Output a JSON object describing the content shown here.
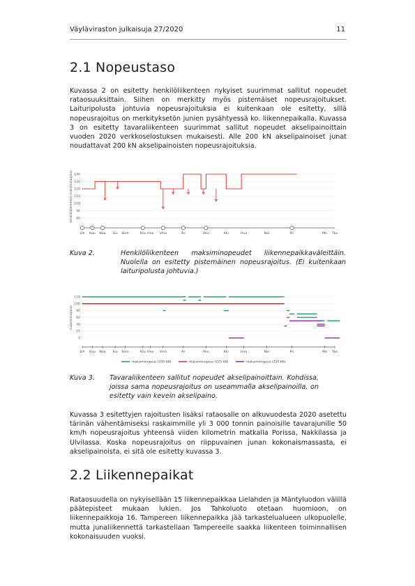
{
  "header": {
    "publication": "Väyläviraston julkaisuja 27/2020",
    "page_number": "11"
  },
  "section1": {
    "title": "2.1  Nopeustaso",
    "paragraph": "Kuvassa 2 on esitetty henkilöliikenteen nykyiset suurimmat sallitut nopeudet rataosuuksittain. Siihen on merkitty myös pistemäiset nopeusrajoitukset. Laituripolusta johtuvia nopeusrajoituksia ei kuitenkaan ole esitetty, sillä nopeusrajoitus on merkityksetön junien pysähtyessä ko. liikennepaikalla. Kuvassa 3 on esitetty tavaraliikenteen suurimmat sallitut nopeudet akselipainoittain vuoden 2020 verkkoselostuksen mukaisesti. Alle 200 kN akselipainoiset junat noudattavat 200 kN akselipainoisten nopeusrajoituksia."
  },
  "figure2": {
    "caption_label": "Kuva 2.",
    "caption_text": "Henkilöliikenteen maksiminopeudet liikennepaikkaväleittäin. Nuolella on esitetty pistemäinen nopeusrajoitus. (Ei kuitenkaan laituripolusta johtuvia.)"
  },
  "figure3": {
    "caption_label": "Kuva 3.",
    "caption_text": "Tavaraliikenteen sallitut nopeudet akselipainoittain. Kohdissa, joissa sama nopeusrajoitus on useammalla akselipainoilla, on esitetty vain kevein akselipaino."
  },
  "section1_after": {
    "paragraph": "Kuvassa 3 esitettyjen rajoitusten lisäksi rataosalle on alkuvuodesta 2020 asetettu tärinän vähentämiseksi raskaimmille yli 3 000 tonnin painoisille tavarajunille 50 km/h nopeusrajoitus yhteensä viiden kilometrin matkalla Porissa, Nakkilassa ja Ulvilassa. Koska nopeusrajoitus on riippuvainen junan kokonaismassasta, ei akselipainoista, ei sitä ole esitetty kuvassa 3."
  },
  "section2": {
    "title": "2.2  Liikennepaikat",
    "paragraph": "Rataosuudella on nykyisellään 15 liikennepaikkaa Lielahden ja Mäntyluodon välillä päätepisteet mukaan lukien. Jos Tahkoluoto otetaan huomioon, on liikennepaikkoja 16. Tampereen liikennepaikka jää tarkastelualueen ulkopuolelle, mutta junaliikennettä tarkastellaan Tampereelle saakka liikenteen toiminnallisen kokonaisuuden vuoksi."
  },
  "chart_data": [
    {
      "type": "line",
      "ylabel": "henkilöliikenteen maksiminopeus",
      "ylim": [
        80,
        140
      ],
      "yticks": [
        80,
        90,
        100,
        110,
        120,
        130,
        140
      ],
      "stations": [
        "Llh",
        "Kau",
        "Noa",
        "Siu",
        "Snm",
        "Kru",
        "Hno",
        "Vma",
        "Äs",
        "Ahv",
        "Kki",
        "Hva",
        "Nal",
        "Pri",
        "Mn",
        "Tko"
      ],
      "station_km": [
        0,
        4,
        8,
        13,
        17,
        24,
        27,
        32,
        40,
        49,
        57,
        64,
        73,
        83,
        96,
        100
      ],
      "station_markers": [
        0,
        4,
        8,
        24,
        32,
        40,
        49,
        83
      ],
      "series": [
        {
          "color": "#e0473b",
          "points": [
            [
              0,
              120
            ],
            [
              5,
              120
            ],
            [
              5,
              130
            ],
            [
              23,
              130
            ],
            [
              23,
              130
            ],
            [
              31,
              130
            ],
            [
              31,
              120
            ],
            [
              40,
              120
            ],
            [
              40,
              140
            ],
            [
              47,
              140
            ],
            [
              47,
              120
            ],
            [
              49,
              120
            ],
            [
              49,
              140
            ],
            [
              57,
              140
            ],
            [
              57,
              120
            ],
            [
              63,
              120
            ],
            [
              63,
              140
            ],
            [
              85,
              140
            ]
          ],
          "arrows": [
            [
              9,
              130,
              105
            ],
            [
              14,
              130,
              120
            ],
            [
              32,
              120,
              93
            ],
            [
              36,
              120,
              113
            ],
            [
              42,
              120,
              113
            ],
            [
              48,
              120,
              113
            ],
            [
              53,
              120,
              103
            ]
          ]
        }
      ]
    },
    {
      "type": "line",
      "ylabel": "maksiminopeus",
      "ylim": [
        0,
        120
      ],
      "yticks": [
        0,
        20,
        40,
        60,
        80,
        100,
        120
      ],
      "stations": [
        "Llh",
        "Kau",
        "Noa",
        "Siu",
        "Snm",
        "Kru",
        "Hno",
        "Vma",
        "Äs",
        "Ahv",
        "Kki",
        "Hva",
        "Nal",
        "Pri",
        "Mn",
        "Tko"
      ],
      "station_km": [
        0,
        4,
        8,
        13,
        17,
        24,
        27,
        32,
        40,
        49,
        57,
        64,
        73,
        83,
        96,
        100
      ],
      "series": [
        {
          "name": "maksiminopeus (200 kN)",
          "color": "#2e9e7a",
          "segments": [
            [
              0,
              120,
              32,
              120
            ],
            [
              32,
              120,
              41,
              120
            ],
            [
              42,
              120,
              47,
              120
            ],
            [
              48,
              120,
              57,
              120
            ],
            [
              58,
              120,
              80,
              120
            ],
            [
              32,
              80,
              33,
              80
            ],
            [
              40,
              110,
              41,
              110
            ],
            [
              46,
              110,
              47,
              110
            ],
            [
              56,
              80,
              58,
              80
            ],
            [
              81,
              80,
              82,
              80
            ],
            [
              82,
              70,
              84,
              70
            ],
            [
              85,
              70,
              93,
              70
            ],
            [
              85,
              60,
              93,
              60
            ],
            [
              93,
              50,
              96,
              50
            ],
            [
              97,
              50,
              102,
              50
            ]
          ]
        },
        {
          "name": "maksiminopeus (225 kN)",
          "color": "#d83a34",
          "segments": [
            [
              0,
              100,
              80,
              100
            ],
            [
              81,
              60,
              82,
              60
            ],
            [
              80,
              35,
              81,
              35
            ]
          ]
        },
        {
          "name": "maksiminopeus (250 kN)",
          "color": "#9b3ab5",
          "segments": [
            [
              58,
              0,
              64,
              0
            ],
            [
              82,
              50,
              95,
              50
            ],
            [
              93,
              40,
              96,
              40
            ],
            [
              93,
              35,
              96,
              35
            ],
            [
              96,
              0,
              102,
              0
            ]
          ]
        }
      ]
    }
  ]
}
